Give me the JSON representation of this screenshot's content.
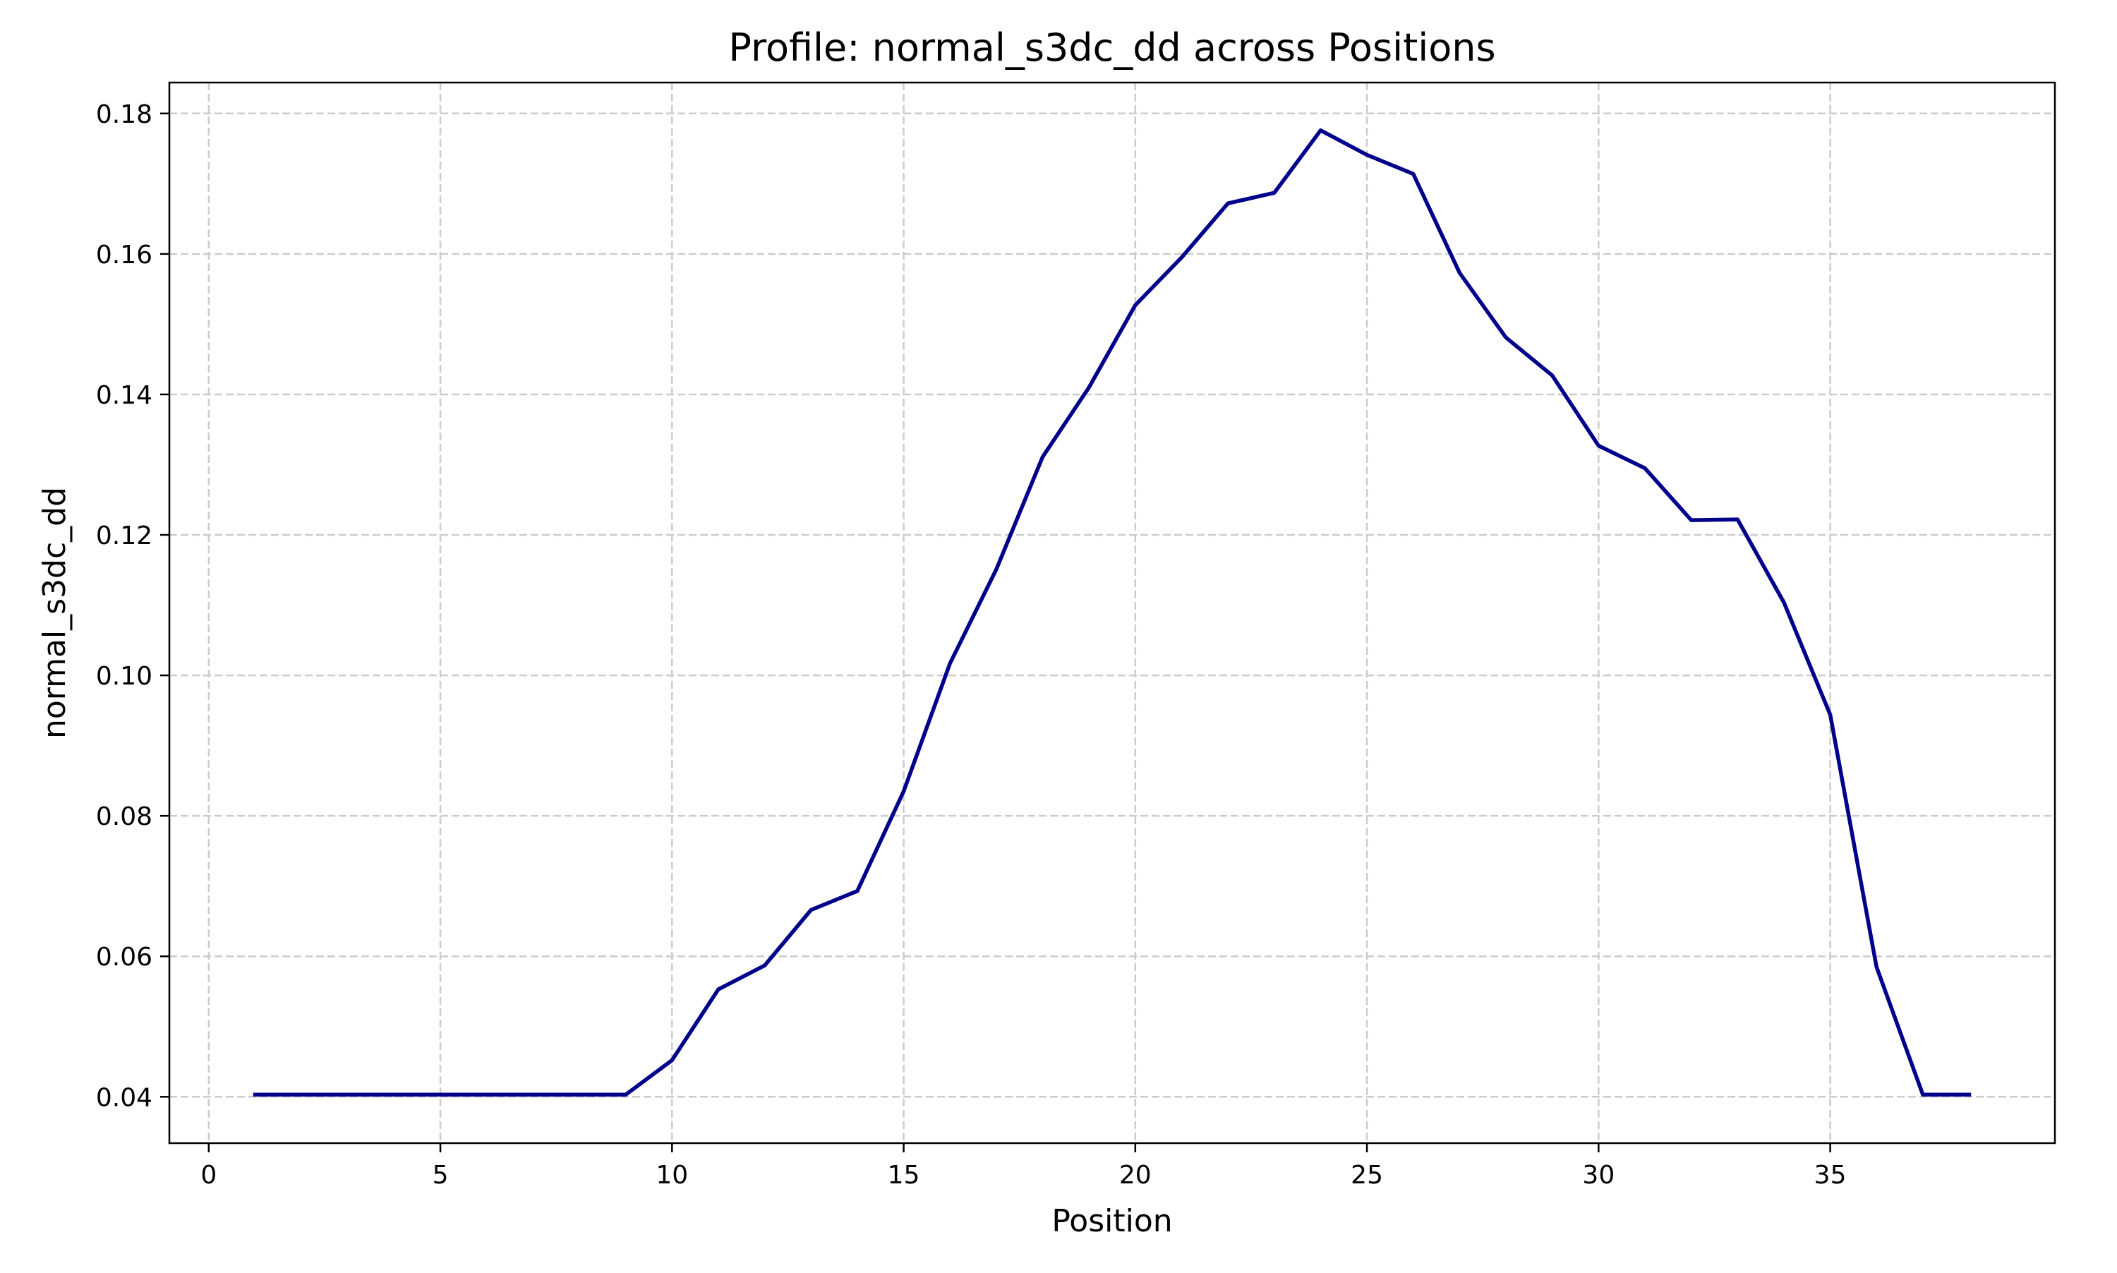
{
  "chart_data": {
    "type": "line",
    "title": "Profile: normal_s3dc_dd across Positions",
    "xlabel": "Position",
    "ylabel": "normal_s3dc_dd",
    "xlim": [
      -0.85,
      39.85
    ],
    "ylim": [
      0.0334,
      0.1844
    ],
    "xticks": [
      0,
      5,
      10,
      15,
      20,
      25,
      30,
      35
    ],
    "xtick_labels": [
      "0",
      "5",
      "10",
      "15",
      "20",
      "25",
      "30",
      "35"
    ],
    "yticks": [
      0.04,
      0.06,
      0.08,
      0.1,
      0.12,
      0.14,
      0.16,
      0.18
    ],
    "ytick_labels": [
      "0.04",
      "0.06",
      "0.08",
      "0.10",
      "0.12",
      "0.14",
      "0.16",
      "0.18"
    ],
    "grid": true,
    "legend": "none",
    "line_color": "#00008b",
    "series": [
      {
        "x": [
          1,
          2,
          3,
          4,
          5,
          6,
          7,
          8,
          9,
          10,
          11,
          12,
          13,
          14,
          15,
          16,
          17,
          18,
          19,
          20,
          21,
          22,
          23,
          24,
          25,
          26,
          27,
          28,
          29,
          30,
          31,
          32,
          33,
          34,
          35,
          36,
          37,
          38
        ],
        "values": [
          0.0403,
          0.0403,
          0.0403,
          0.0403,
          0.0403,
          0.0403,
          0.0403,
          0.0403,
          0.0403,
          0.0452,
          0.0553,
          0.0587,
          0.0666,
          0.0693,
          0.0835,
          0.1017,
          0.1151,
          0.1311,
          0.141,
          0.1527,
          0.1595,
          0.1672,
          0.1687,
          0.1776,
          0.1741,
          0.1714,
          0.1573,
          0.1481,
          0.1427,
          0.1327,
          0.1295,
          0.1221,
          0.1222,
          0.1104,
          0.0944,
          0.0585,
          0.0403,
          0.0403
        ]
      }
    ]
  }
}
